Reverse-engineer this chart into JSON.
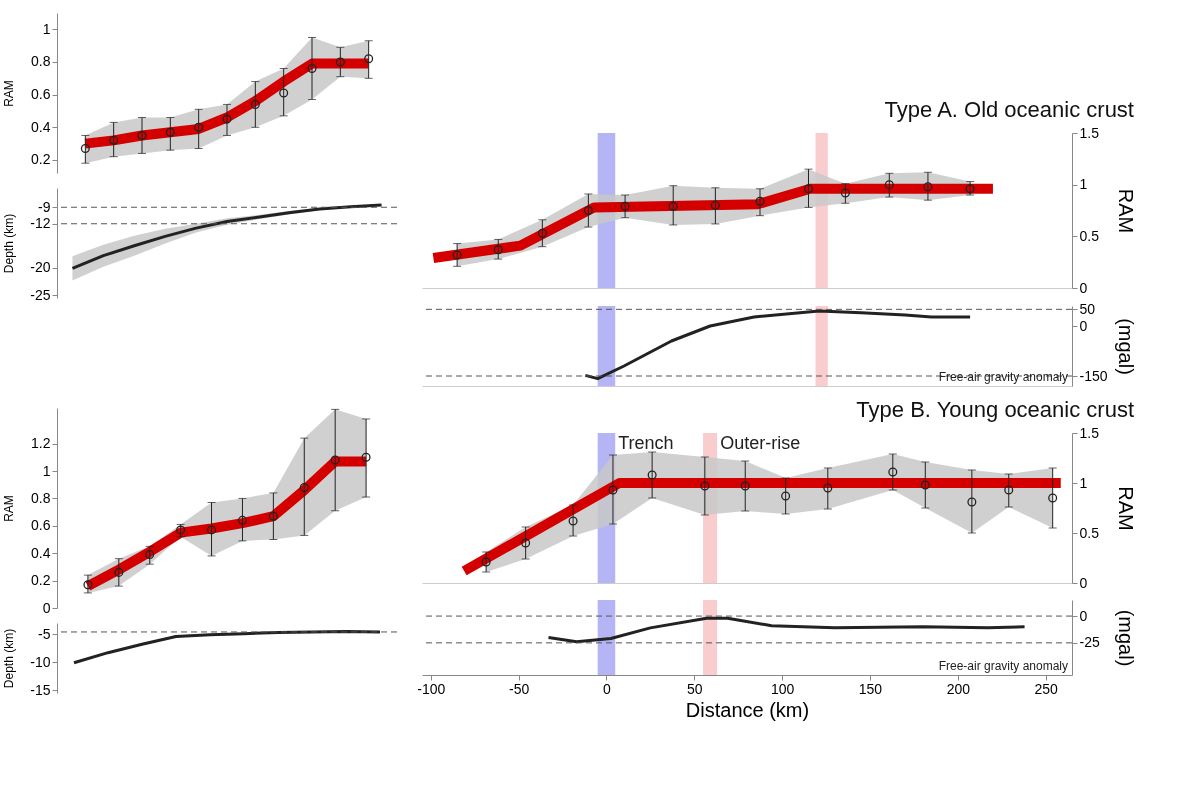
{
  "chart_data": [
    {
      "type": "scatter",
      "ylabel": "RAM",
      "categories": [
        null,
        null,
        null,
        null,
        null,
        null,
        null,
        null,
        null,
        null,
        null
      ],
      "ylim": [
        0.12,
        1.1
      ],
      "yticks": [
        0.2,
        0.4,
        0.6,
        0.8,
        1
      ],
      "grid": false,
      "series": [
        {
          "marker": "circle",
          "color": "#222222",
          "values": [
            0.27,
            0.32,
            0.35,
            0.37,
            0.4,
            0.45,
            0.54,
            0.61,
            0.76,
            0.8,
            0.82
          ],
          "errors": [
            [
              0.18,
              0.35
            ],
            [
              0.22,
              0.43
            ],
            [
              0.24,
              0.46
            ],
            [
              0.26,
              0.46
            ],
            [
              0.27,
              0.51
            ],
            [
              0.35,
              0.54
            ],
            [
              0.4,
              0.68
            ],
            [
              0.47,
              0.76
            ],
            [
              0.57,
              0.95
            ],
            [
              0.71,
              0.89
            ],
            [
              0.7,
              0.93
            ]
          ],
          "lower": [
            0.18,
            0.22,
            0.24,
            0.26,
            0.27,
            0.35,
            0.4,
            0.47,
            0.57,
            0.71,
            0.7
          ],
          "upper": [
            0.35,
            0.43,
            0.46,
            0.46,
            0.51,
            0.54,
            0.68,
            0.76,
            0.95,
            0.89,
            0.93
          ]
        },
        {
          "type": "line",
          "color": "#d40000",
          "values": [
            0.3,
            0.32,
            0.35,
            0.37,
            0.39,
            0.46,
            0.56,
            0.68,
            0.79,
            0.79,
            0.79
          ]
        }
      ]
    },
    {
      "type": "line",
      "ylabel": "Depth (km)",
      "categories": [
        null,
        null,
        null,
        null,
        null,
        null,
        null,
        null,
        null,
        null,
        null
      ],
      "ylim": [
        -25.5,
        -5.5
      ],
      "yticks": [
        -25,
        -20,
        -12,
        -9
      ],
      "grid": false,
      "series": [
        {
          "color": "#222222",
          "values": [
            -20.1,
            -17.8,
            -16.0,
            -14.3,
            -12.8,
            -11.6,
            -10.8,
            -10.0,
            -9.3,
            -8.9,
            -8.6
          ],
          "lower": [
            -22.3,
            -19.8,
            -17.8,
            -15.6,
            -13.6,
            -12.2,
            -11.2,
            -10.3,
            -9.5,
            -9.0,
            -8.7
          ],
          "upper": [
            -17.9,
            -15.8,
            -14.2,
            -12.9,
            -12.0,
            -11.0,
            -10.4,
            -9.7,
            -9.1,
            -8.8,
            -8.5
          ]
        }
      ],
      "ref_lines": [
        {
          "axis": "y",
          "value": -9,
          "line_style": "dashed"
        },
        {
          "axis": "y",
          "value": -12,
          "line_style": "dashed"
        }
      ]
    },
    {
      "type": "scatter",
      "title": "Type A. Old oceanic crust",
      "y2label": "RAM",
      "xlim": [
        -105,
        265
      ],
      "y2lim": [
        0,
        1.5
      ],
      "y2ticks": [
        0,
        0.5,
        1,
        1.5
      ],
      "tick_labels": "y",
      "grid": false,
      "series": [
        {
          "marker": "circle",
          "axis": "y2",
          "color": "#222222",
          "x": [
            -85,
            -61.6,
            -36.5,
            -10.3,
            10.6,
            38,
            62,
            87.4,
            115,
            136,
            161,
            183,
            207
          ],
          "values": [
            0.32,
            0.37,
            0.53,
            0.75,
            0.79,
            0.79,
            0.8,
            0.84,
            0.96,
            0.92,
            1.0,
            0.98,
            0.96
          ],
          "errors": [
            [
              0.21,
              0.43
            ],
            [
              0.28,
              0.47
            ],
            [
              0.4,
              0.66
            ],
            [
              0.59,
              0.91
            ],
            [
              0.68,
              0.9
            ],
            [
              0.61,
              0.99
            ],
            [
              0.62,
              0.97
            ],
            [
              0.7,
              0.96
            ],
            [
              0.78,
              1.15
            ],
            [
              0.82,
              1.01
            ],
            [
              0.88,
              1.11
            ],
            [
              0.85,
              1.12
            ],
            [
              0.9,
              1.03
            ]
          ],
          "lower": [
            0.21,
            0.28,
            0.4,
            0.59,
            0.68,
            0.61,
            0.62,
            0.7,
            0.78,
            0.82,
            0.88,
            0.85,
            0.9
          ],
          "upper": [
            0.43,
            0.47,
            0.66,
            0.91,
            0.9,
            0.99,
            0.97,
            0.96,
            1.15,
            1.01,
            1.11,
            1.12,
            1.03
          ]
        },
        {
          "type": "line",
          "axis": "y2",
          "color": "#d40000",
          "x": [
            -98.5,
            -49,
            -7,
            86,
            116,
            220
          ],
          "values": [
            0.29,
            0.41,
            0.78,
            0.81,
            0.96,
            0.96
          ]
        }
      ],
      "bands": [
        {
          "axis": "x",
          "from": -5,
          "to": 5,
          "color": "#a8a8f5"
        },
        {
          "axis": "x",
          "from": 119,
          "to": 126,
          "color": "#f8c3c5"
        }
      ]
    },
    {
      "type": "line",
      "y2label": "(mgal)",
      "xlim": [
        -105,
        265
      ],
      "y2lim": [
        -180,
        60
      ],
      "y2ticks": [
        -150,
        0,
        50
      ],
      "tick_labels": "y",
      "grid": false,
      "series": [
        {
          "axis": "y2",
          "color": "#222222",
          "x": [
            -12,
            -5,
            10,
            37,
            59,
            84,
            121,
            145,
            170,
            185,
            207
          ],
          "values": [
            -148,
            -158,
            -120,
            -45,
            0,
            27,
            45,
            40,
            33,
            27,
            27
          ]
        }
      ],
      "ref_lines": [
        {
          "axis": "y2",
          "value": 50,
          "line_style": "dashed"
        },
        {
          "axis": "y2",
          "value": -150,
          "line_style": "dashed"
        }
      ],
      "bands": [
        {
          "axis": "x",
          "from": -5,
          "to": 5,
          "color": "#a8a8f5"
        },
        {
          "axis": "x",
          "from": 119,
          "to": 126,
          "color": "#f8c3c5"
        }
      ],
      "annotations": [
        "Free-air gravity anomaly"
      ]
    },
    {
      "type": "scatter",
      "ylabel": "RAM",
      "categories": [
        null,
        null,
        null,
        null,
        null,
        null,
        null,
        null,
        null,
        null
      ],
      "ylim": [
        0,
        1.46
      ],
      "yticks": [
        0,
        0.2,
        0.4,
        0.6,
        0.8,
        1,
        1.2
      ],
      "grid": false,
      "series": [
        {
          "marker": "circle",
          "color": "#222222",
          "values": [
            0.17,
            0.26,
            0.39,
            0.57,
            0.57,
            0.64,
            0.67,
            0.88,
            1.08,
            1.1
          ],
          "errors": [
            [
              0.11,
              0.24
            ],
            [
              0.16,
              0.36
            ],
            [
              0.32,
              0.45
            ],
            [
              0.52,
              0.61
            ],
            [
              0.38,
              0.77
            ],
            [
              0.49,
              0.8
            ],
            [
              0.5,
              0.84
            ],
            [
              0.53,
              1.24
            ],
            [
              0.71,
              1.45
            ],
            [
              0.81,
              1.38
            ]
          ],
          "lower": [
            0.11,
            0.16,
            0.32,
            0.52,
            0.38,
            0.49,
            0.5,
            0.53,
            0.71,
            0.81
          ],
          "upper": [
            0.24,
            0.36,
            0.45,
            0.61,
            0.77,
            0.8,
            0.84,
            1.24,
            1.45,
            1.38
          ]
        },
        {
          "type": "line",
          "color": "#d40000",
          "values": [
            0.16,
            0.28,
            0.41,
            0.55,
            0.58,
            0.62,
            0.67,
            0.86,
            1.07,
            1.07
          ]
        }
      ]
    },
    {
      "type": "line",
      "ylabel": "Depth (km)",
      "categories": [
        null,
        null,
        null,
        null,
        null,
        null,
        null,
        null,
        null,
        null
      ],
      "ylim": [
        -15.5,
        -3
      ],
      "yticks": [
        -15,
        -10,
        -5
      ],
      "grid": false,
      "series": [
        {
          "color": "#222222",
          "values": [
            -10.1,
            -8.3,
            -6.8,
            -5.4,
            -5.1,
            -4.9,
            -4.7,
            -4.6,
            -4.5,
            -4.6
          ]
        }
      ],
      "ref_lines": [
        {
          "axis": "y",
          "value": -4.6,
          "line_style": "dashed"
        }
      ]
    },
    {
      "type": "scatter",
      "title": "Type B. Young oceanic crust",
      "y2label": "RAM",
      "xlim": [
        -105,
        265
      ],
      "y2lim": [
        0,
        1.5
      ],
      "y2ticks": [
        0,
        0.5,
        1,
        1.5
      ],
      "tick_labels": "y",
      "grid": false,
      "series": [
        {
          "marker": "circle",
          "axis": "y2",
          "color": "#222222",
          "x": [
            -68.5,
            -46,
            -19,
            3.7,
            26,
            56,
            79,
            102,
            126,
            163,
            181.5,
            208,
            229,
            254
          ],
          "values": [
            0.21,
            0.4,
            0.62,
            0.93,
            1.08,
            0.97,
            0.97,
            0.87,
            0.95,
            1.11,
            0.98,
            0.81,
            0.93,
            0.85
          ],
          "errors": [
            [
              0.11,
              0.31
            ],
            [
              0.24,
              0.56
            ],
            [
              0.47,
              0.78
            ],
            [
              0.59,
              1.28
            ],
            [
              0.85,
              1.31
            ],
            [
              0.68,
              1.26
            ],
            [
              0.72,
              1.22
            ],
            [
              0.69,
              1.05
            ],
            [
              0.74,
              1.15
            ],
            [
              0.93,
              1.29
            ],
            [
              0.75,
              1.21
            ],
            [
              0.5,
              1.13
            ],
            [
              0.76,
              1.09
            ],
            [
              0.55,
              1.15
            ]
          ],
          "lower": [
            0.11,
            0.24,
            0.47,
            0.59,
            0.85,
            0.68,
            0.72,
            0.69,
            0.74,
            0.93,
            0.75,
            0.5,
            0.76,
            0.55
          ],
          "upper": [
            0.31,
            0.56,
            0.78,
            1.28,
            1.31,
            1.26,
            1.22,
            1.05,
            1.15,
            1.29,
            1.21,
            1.13,
            1.09,
            1.15
          ]
        },
        {
          "type": "line",
          "axis": "y2",
          "color": "#d40000",
          "x": [
            -81,
            7.4,
            258.6
          ],
          "values": [
            0.12,
            1.0,
            1.0
          ]
        }
      ],
      "bands": [
        {
          "axis": "x",
          "from": -5,
          "to": 5,
          "color": "#a8a8f5",
          "label": "Trench"
        },
        {
          "axis": "x",
          "from": 55,
          "to": 63,
          "color": "#f8c3c5",
          "label": "Outer-rise"
        }
      ]
    },
    {
      "type": "line",
      "xlabel": "Distance (km)",
      "y2label": "(mgal)",
      "xlim": [
        -105,
        265
      ],
      "xticks": [
        -100,
        -50,
        0,
        50,
        100,
        150,
        200,
        250
      ],
      "y2lim": [
        -55,
        15
      ],
      "y2ticks": [
        -25,
        0
      ],
      "grid": false,
      "series": [
        {
          "axis": "y2",
          "color": "#222222",
          "x": [
            -33,
            -17,
            2.5,
            25,
            57,
            69,
            94,
            130,
            180,
            217,
            238
          ],
          "values": [
            -20,
            -24,
            -21,
            -11,
            -2,
            -2,
            -9,
            -11,
            -10,
            -11,
            -10
          ]
        }
      ],
      "ref_lines": [
        {
          "axis": "y2",
          "value": 0,
          "line_style": "dashed"
        },
        {
          "axis": "y2",
          "value": -25,
          "line_style": "dashed"
        }
      ],
      "bands": [
        {
          "axis": "x",
          "from": -5,
          "to": 5,
          "color": "#a8a8f5"
        },
        {
          "axis": "x",
          "from": 55,
          "to": 63,
          "color": "#f8c3c5"
        }
      ],
      "annotations": [
        "Free-air gravity anomaly"
      ]
    }
  ]
}
